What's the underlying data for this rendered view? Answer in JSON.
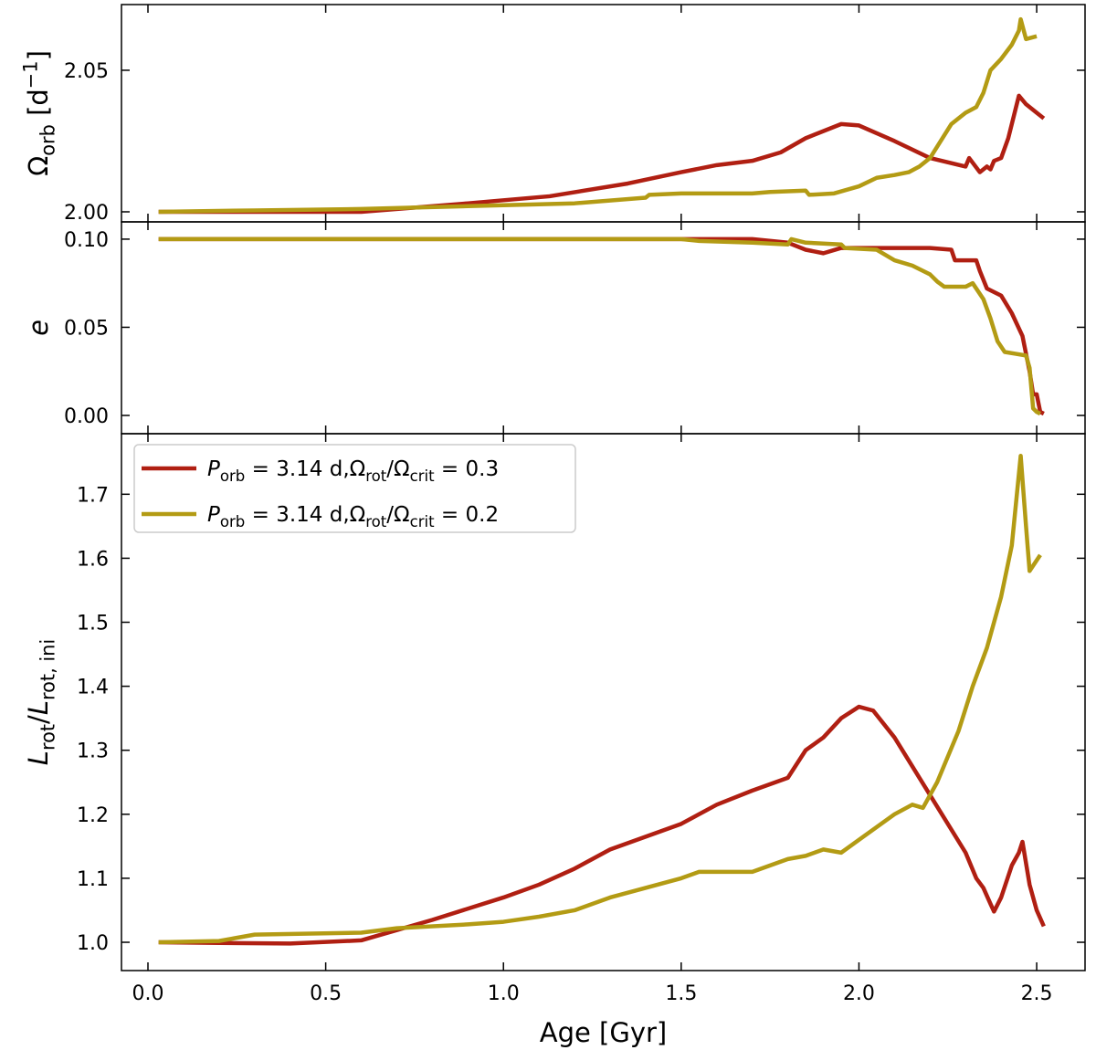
{
  "chart_data": [
    {
      "type": "line",
      "ylabel": [
        "Ω",
        {
          "sub": "orb"
        },
        " [d",
        {
          "sup": "−1"
        },
        "]"
      ],
      "xlim": [
        -0.0745,
        2.636
      ],
      "ylim": [
        1.99645,
        2.0732
      ],
      "yticks": [
        {
          "value": 2,
          "label": "2.00"
        },
        {
          "value": 2.05,
          "label": "2.05"
        }
      ],
      "series": [
        {
          "color": "#b01f12",
          "x": [
            0.03,
            0.6,
            0.9,
            1.13,
            1.35,
            1.5,
            1.6,
            1.7,
            1.78,
            1.85,
            1.95,
            2.0,
            2.1,
            2.2,
            2.3,
            2.31,
            2.34,
            2.36,
            2.37,
            2.38,
            2.4,
            2.42,
            2.44,
            2.45,
            2.47,
            2.5,
            2.52
          ],
          "values": [
            2.0,
            2.0,
            2.003,
            2.0055,
            2.01,
            2.014,
            2.0165,
            2.018,
            2.021,
            2.026,
            2.031,
            2.0305,
            2.025,
            2.019,
            2.016,
            2.019,
            2.014,
            2.016,
            2.015,
            2.018,
            2.019,
            2.026,
            2.036,
            2.041,
            2.038,
            2.035,
            2.033
          ]
        },
        {
          "color": "#b39b14",
          "x": [
            0.03,
            0.3,
            0.6,
            0.9,
            1.2,
            1.4,
            1.41,
            1.5,
            1.7,
            1.75,
            1.85,
            1.86,
            1.93,
            2.0,
            2.05,
            2.1,
            2.14,
            2.17,
            2.2,
            2.23,
            2.26,
            2.3,
            2.33,
            2.35,
            2.37,
            2.4,
            2.43,
            2.45,
            2.455,
            2.47,
            2.5
          ],
          "values": [
            2.0,
            2.0005,
            2.001,
            2.002,
            2.003,
            2.005,
            2.006,
            2.0065,
            2.0065,
            2.007,
            2.0075,
            2.006,
            2.0065,
            2.009,
            2.012,
            2.013,
            2.014,
            2.016,
            2.019,
            2.025,
            2.031,
            2.035,
            2.037,
            2.042,
            2.05,
            2.054,
            2.059,
            2.064,
            2.068,
            2.061,
            2.062
          ]
        }
      ]
    },
    {
      "type": "line",
      "ylabel": [
        {
          "it": "e"
        }
      ],
      "xlim": [
        -0.0745,
        2.636
      ],
      "ylim": [
        -0.01036,
        0.1098
      ],
      "yticks": [
        {
          "value": 0,
          "label": "0.00"
        },
        0.05,
        {
          "value": 0.1,
          "label": "0.10"
        }
      ],
      "series": [
        {
          "color": "#b01f12",
          "x": [
            0.03,
            1.7,
            1.8,
            1.85,
            1.9,
            1.95,
            2.2,
            2.26,
            2.27,
            2.33,
            2.34,
            2.36,
            2.4,
            2.43,
            2.46,
            2.48,
            2.49,
            2.5,
            2.51,
            2.52
          ],
          "values": [
            0.1,
            0.1,
            0.098,
            0.094,
            0.092,
            0.095,
            0.095,
            0.094,
            0.088,
            0.088,
            0.082,
            0.072,
            0.068,
            0.058,
            0.045,
            0.025,
            0.012,
            0.012,
            0.002,
            0.001
          ]
        },
        {
          "color": "#b39b14",
          "x": [
            0.03,
            1.5,
            1.55,
            1.7,
            1.8,
            1.81,
            1.85,
            1.95,
            1.96,
            2.05,
            2.1,
            2.15,
            2.2,
            2.22,
            2.24,
            2.3,
            2.32,
            2.35,
            2.37,
            2.39,
            2.41,
            2.44,
            2.47,
            2.48,
            2.49,
            2.5,
            2.51
          ],
          "values": [
            0.1,
            0.1,
            0.099,
            0.098,
            0.097,
            0.1,
            0.098,
            0.097,
            0.095,
            0.094,
            0.088,
            0.085,
            0.08,
            0.076,
            0.073,
            0.073,
            0.075,
            0.066,
            0.055,
            0.042,
            0.036,
            0.035,
            0.034,
            0.027,
            0.004,
            0.002,
            0.001
          ]
        }
      ]
    },
    {
      "type": "line",
      "ylabel": [
        {
          "it": "L"
        },
        {
          "sub": "rot"
        },
        "/",
        {
          "it": "L"
        },
        {
          "sub": "rot, ini"
        }
      ],
      "xlabel": "Age [Gyr]",
      "xlim": [
        -0.0745,
        2.636
      ],
      "xticks": [
        {
          "value": 0,
          "label": "0.0"
        },
        0.5,
        {
          "value": 1,
          "label": "1.0"
        },
        1.5,
        {
          "value": 2,
          "label": "2.0"
        },
        2.5
      ],
      "ylim": [
        0.9558,
        1.7946
      ],
      "yticks": [
        {
          "value": 1,
          "label": "1.0"
        },
        1.1,
        1.2,
        1.3,
        1.4,
        1.5,
        1.6,
        1.7
      ],
      "legend": "upper left",
      "series": [
        {
          "name": [
            {
              "it": "P"
            },
            {
              "sub": "orb"
            },
            " = 3.14 d,Ω",
            {
              "sub": "rot"
            },
            "/Ω",
            {
              "sub": "crit"
            },
            " = 0.3"
          ],
          "color": "#b01f12",
          "x": [
            0.03,
            0.2,
            0.4,
            0.6,
            0.8,
            1.0,
            1.1,
            1.2,
            1.3,
            1.4,
            1.5,
            1.6,
            1.7,
            1.8,
            1.85,
            1.9,
            1.95,
            2.0,
            2.04,
            2.1,
            2.2,
            2.3,
            2.33,
            2.35,
            2.37,
            2.38,
            2.4,
            2.43,
            2.45,
            2.46,
            2.48,
            2.5,
            2.52
          ],
          "values": [
            1.0,
            0.999,
            0.998,
            1.003,
            1.035,
            1.07,
            1.09,
            1.115,
            1.145,
            1.165,
            1.185,
            1.215,
            1.237,
            1.257,
            1.3,
            1.32,
            1.35,
            1.368,
            1.362,
            1.32,
            1.23,
            1.14,
            1.1,
            1.085,
            1.06,
            1.048,
            1.07,
            1.12,
            1.14,
            1.157,
            1.09,
            1.05,
            1.025
          ]
        },
        {
          "name": [
            {
              "it": "P"
            },
            {
              "sub": "orb"
            },
            " = 3.14 d,Ω",
            {
              "sub": "rot"
            },
            "/Ω",
            {
              "sub": "crit"
            },
            " = 0.2"
          ],
          "color": "#b39b14",
          "x": [
            0.03,
            0.2,
            0.3,
            0.6,
            0.7,
            0.9,
            1.0,
            1.1,
            1.2,
            1.3,
            1.4,
            1.5,
            1.55,
            1.7,
            1.75,
            1.8,
            1.85,
            1.9,
            1.95,
            2.0,
            2.05,
            2.1,
            2.15,
            2.18,
            2.22,
            2.28,
            2.32,
            2.36,
            2.4,
            2.43,
            2.455,
            2.47,
            2.48,
            2.51
          ],
          "values": [
            1.0,
            1.002,
            1.012,
            1.015,
            1.022,
            1.028,
            1.032,
            1.04,
            1.05,
            1.07,
            1.085,
            1.1,
            1.11,
            1.11,
            1.12,
            1.13,
            1.135,
            1.145,
            1.14,
            1.16,
            1.18,
            1.2,
            1.215,
            1.21,
            1.25,
            1.33,
            1.4,
            1.46,
            1.54,
            1.62,
            1.76,
            1.65,
            1.58,
            1.605
          ]
        }
      ]
    }
  ]
}
